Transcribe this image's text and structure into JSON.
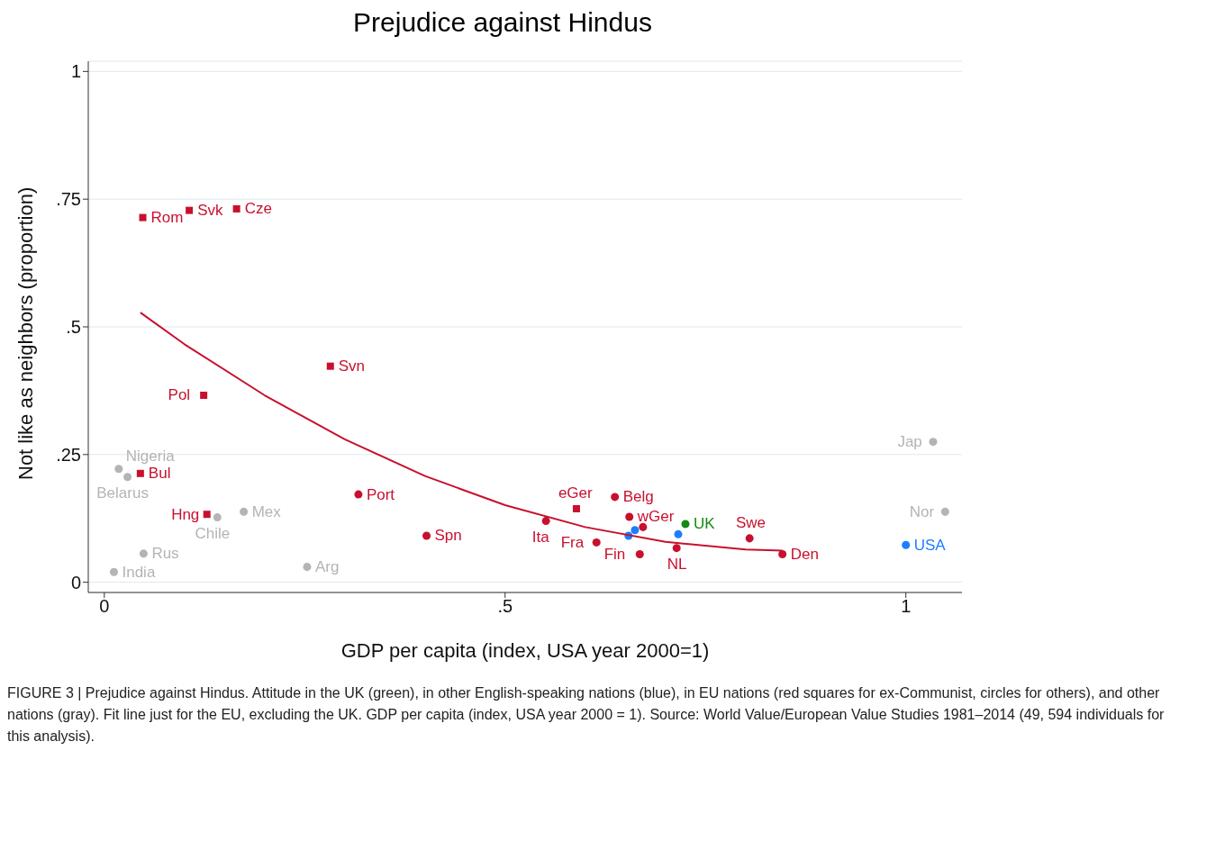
{
  "chart_data": {
    "type": "scatter",
    "title": "Prejudice against Hindus",
    "xlabel": "GDP per capita (index, USA year 2000=1)",
    "ylabel": "Not like as neighbors (proportion)",
    "xlim": [
      -0.02,
      1.07
    ],
    "ylim": [
      -0.02,
      1.02
    ],
    "xticks": [
      {
        "value": 0,
        "label": "0"
      },
      {
        "value": 0.5,
        "label": ".5"
      },
      {
        "value": 1,
        "label": "1"
      }
    ],
    "yticks": [
      {
        "value": 0,
        "label": "0"
      },
      {
        "value": 0.25,
        "label": ".25"
      },
      {
        "value": 0.5,
        "label": ".5"
      },
      {
        "value": 0.75,
        "label": ".75"
      },
      {
        "value": 1,
        "label": "1"
      }
    ],
    "grid": "y",
    "legend": false,
    "series": [
      {
        "marker": "square",
        "color": "#c8102e",
        "x": [
          0.048,
          0.106,
          0.165,
          0.282,
          0.124,
          0.045,
          0.128,
          0.589
        ],
        "values": [
          0.714,
          0.728,
          0.731,
          0.423,
          0.366,
          0.213,
          0.133,
          0.144
        ],
        "value_labels": [
          "Rom",
          "Svk",
          "Cze",
          "Svn",
          "Pol",
          "Bul",
          "Hng",
          "eGer"
        ]
      },
      {
        "marker": "circle",
        "color": "#c8102e",
        "x": [
          0.317,
          0.402,
          0.551,
          0.614,
          0.637,
          0.655,
          0.672,
          0.668,
          0.714,
          0.805,
          0.846
        ],
        "values": [
          0.172,
          0.091,
          0.12,
          0.078,
          0.167,
          0.128,
          0.108,
          0.055,
          0.067,
          0.086,
          0.055
        ],
        "value_labels": [
          "Port",
          "Spn",
          "Ita",
          "Fra",
          "Belg",
          "wGer",
          null,
          "Fin",
          "NL",
          "Swe",
          "Den"
        ]
      },
      {
        "marker": "circle",
        "color": "#138a13",
        "x": [
          0.725
        ],
        "values": [
          0.114
        ],
        "value_labels": [
          "UK"
        ]
      },
      {
        "marker": "circle",
        "color": "#1a7fff",
        "x": [
          0.654,
          0.662,
          0.716,
          1.0
        ],
        "values": [
          0.091,
          0.102,
          0.094,
          0.073
        ],
        "value_labels": [
          null,
          null,
          null,
          "USA"
        ]
      },
      {
        "marker": "circle",
        "color": "#b4b4b4",
        "x": [
          0.018,
          0.029,
          0.141,
          0.174,
          0.049,
          0.012,
          0.253,
          1.034,
          1.049
        ],
        "values": [
          0.222,
          0.206,
          0.127,
          0.138,
          0.056,
          0.02,
          0.03,
          0.275,
          0.138
        ],
        "value_labels": [
          "Nigeria",
          "Belarus",
          "Chile",
          "Mex",
          "Rus",
          "India",
          "Arg",
          "Jap",
          "Nor"
        ]
      },
      {
        "type": "line",
        "marker": "none",
        "color": "#c8102e",
        "x": [
          0.045,
          0.1,
          0.2,
          0.3,
          0.4,
          0.5,
          0.6,
          0.7,
          0.8,
          0.846
        ],
        "values": [
          0.528,
          0.466,
          0.366,
          0.28,
          0.208,
          0.151,
          0.108,
          0.079,
          0.064,
          0.062
        ]
      }
    ],
    "annotations": [
      "FIGURE 3 | Prejudice against Hindus. Attitude in the UK (green), in other English-speaking nations (blue), in EU nations (red squares for ex-Communist, circles for others), and other nations (gray). Fit line just for the EU, excluding the UK. GDP per capita (index, USA year 2000 = 1). Source: World Value/European Value Studies 1981–2014 (49, 594 individuals for this analysis)."
    ]
  }
}
